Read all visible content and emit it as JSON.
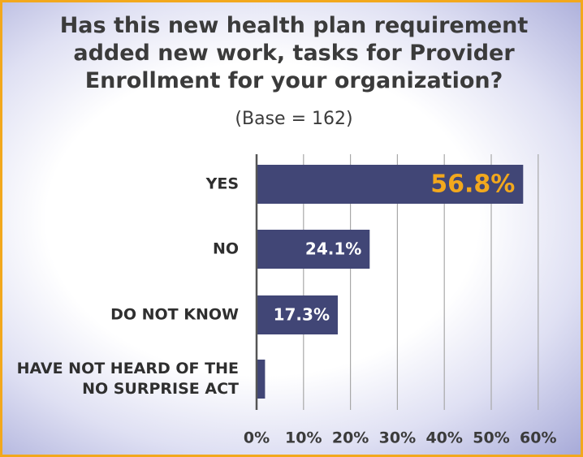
{
  "title_lines": [
    "Has this new health plan requirement",
    "added new work, tasks for Provider",
    "Enrollment for your organization?"
  ],
  "subtitle": "(Base = 162)",
  "colors": {
    "bar": "#414676",
    "border": "#f2a81d",
    "highlight_label": "#f2a81d",
    "label": "#ffffff"
  },
  "chart_data": {
    "type": "bar",
    "orientation": "horizontal",
    "title": "Has this new health plan requirement added new work, tasks for Provider Enrollment for your organization?",
    "subtitle": "(Base = 162)",
    "categories": [
      "YES",
      "NO",
      "DO NOT KNOW",
      "HAVE NOT HEARD OF THE NO SURPRISE ACT"
    ],
    "category_lines": [
      [
        "YES"
      ],
      [
        "NO"
      ],
      [
        "DO NOT KNOW"
      ],
      [
        "HAVE NOT HEARD OF THE",
        "NO SURPRISE ACT"
      ]
    ],
    "values": [
      56.8,
      24.1,
      17.3,
      1.8
    ],
    "data_labels": [
      "56.8%",
      "24.1%",
      "17.3%",
      ""
    ],
    "highlight_index": 0,
    "xlim": [
      0,
      60
    ],
    "xticks": [
      0,
      10,
      20,
      30,
      40,
      50,
      60
    ],
    "xtick_labels": [
      "0%",
      "10%",
      "20%",
      "30%",
      "40%",
      "50%",
      "60%"
    ],
    "grid": true,
    "legend": "none"
  }
}
